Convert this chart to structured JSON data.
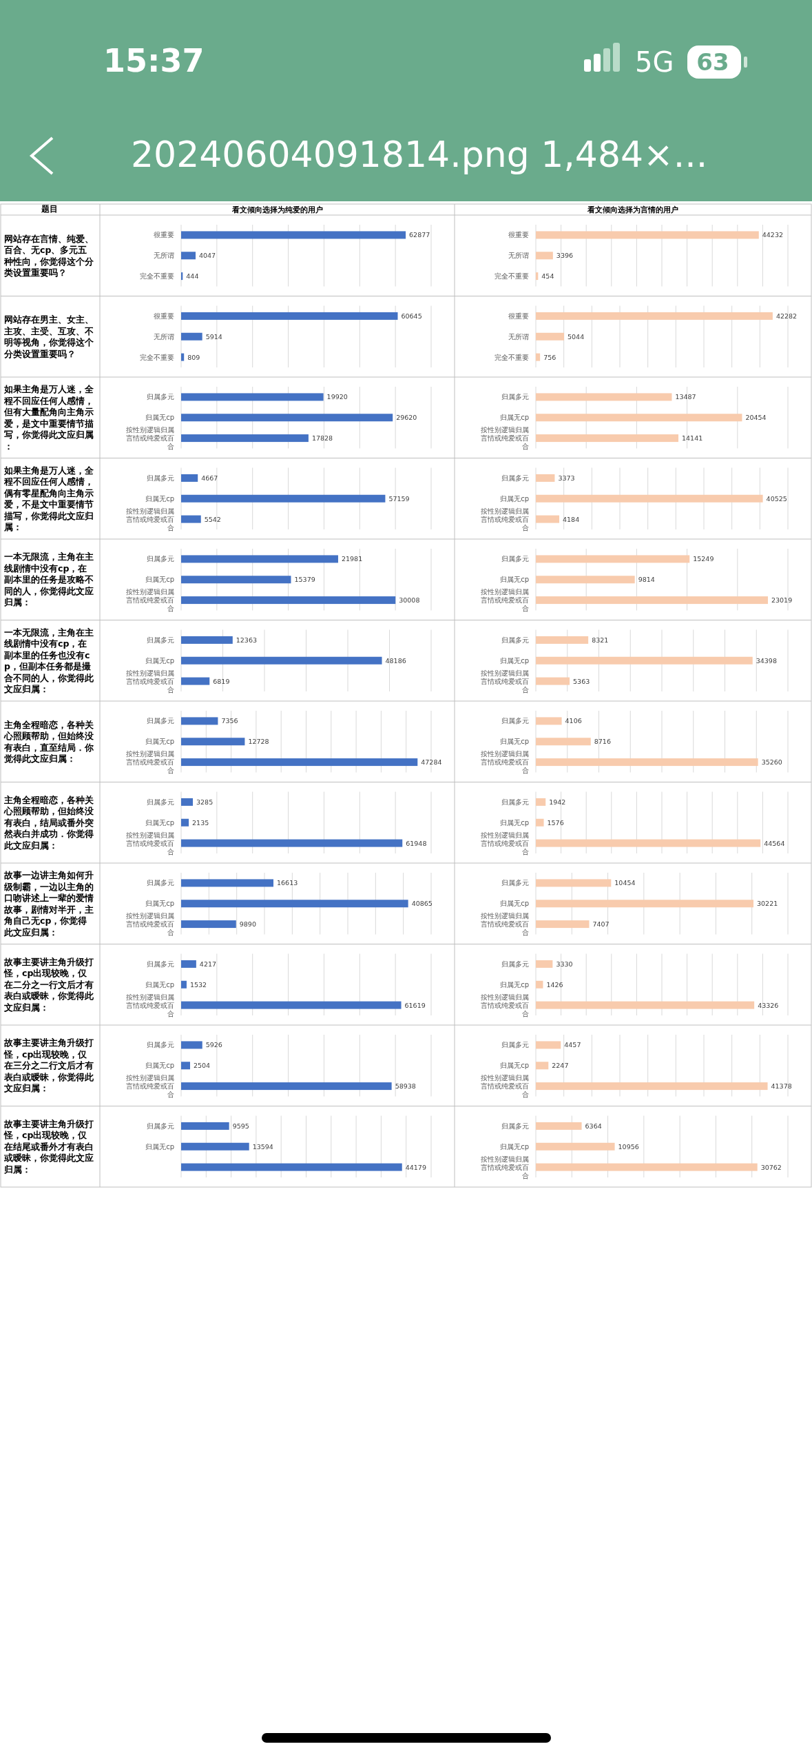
{
  "chart_data": [
    {
      "type": "bar",
      "orientation": "horizontal",
      "title": "网站存在言情、纯爱、百合、无cp、多元五种性向，你觉得这个分类设置重要吗？",
      "subtitle": "看文倾向选择为纯爱的用户",
      "annotations": [
        "15:37",
        "5G",
        "63",
        "20240604091814.png 1,484×...",
        "题目"
      ],
      "categories": [
        "很重要",
        "无所谓",
        "完全不重要"
      ],
      "values": [
        62877,
        4047,
        444
      ],
      "color": "#4472c4",
      "data_labels": true,
      "grid": "x",
      "tick_labels": "y",
      "xlim": [
        0,
        70000
      ],
      "xticks": [
        {
          "value": 10000,
          "label": null
        },
        {
          "value": 20000,
          "label": null
        },
        {
          "value": 30000,
          "label": null
        },
        {
          "value": 40000,
          "label": null
        },
        {
          "value": 50000,
          "label": null
        },
        {
          "value": 60000,
          "label": null
        },
        {
          "value": 70000,
          "label": null
        }
      ]
    },
    {
      "type": "bar",
      "orientation": "horizontal",
      "subtitle": "看文倾向选择为言情的用户",
      "categories": [
        "很重要",
        "无所谓",
        "完全不重要"
      ],
      "values": [
        44232,
        3396,
        454
      ],
      "color": "#f8cbad",
      "data_labels": true,
      "grid": "x",
      "tick_labels": "y",
      "xlim": [
        0,
        50000
      ],
      "xticks": [
        {
          "value": 5000,
          "label": null
        },
        {
          "value": 10000,
          "label": null
        },
        {
          "value": 15000,
          "label": null
        },
        {
          "value": 20000,
          "label": null
        },
        {
          "value": 25000,
          "label": null
        },
        {
          "value": 30000,
          "label": null
        },
        {
          "value": 35000,
          "label": null
        },
        {
          "value": 40000,
          "label": null
        },
        {
          "value": 45000,
          "label": null
        },
        {
          "value": 50000,
          "label": null
        }
      ]
    },
    {
      "type": "bar",
      "orientation": "horizontal",
      "title": "网站存在男主、女主、主攻、主受、互攻、不明等视角，你觉得这个分类设置重要吗？",
      "categories": [
        "很重要",
        "无所谓",
        "完全不重要"
      ],
      "values": [
        60645,
        5914,
        809
      ],
      "color": "#4472c4",
      "data_labels": true,
      "grid": "x",
      "tick_labels": "y",
      "xlim": [
        0,
        70000
      ],
      "xticks": [
        {
          "value": 10000,
          "label": null
        },
        {
          "value": 20000,
          "label": null
        },
        {
          "value": 30000,
          "label": null
        },
        {
          "value": 40000,
          "label": null
        },
        {
          "value": 50000,
          "label": null
        },
        {
          "value": 60000,
          "label": null
        },
        {
          "value": 70000,
          "label": null
        }
      ]
    },
    {
      "type": "bar",
      "orientation": "horizontal",
      "categories": [
        "很重要",
        "无所谓",
        "完全不重要"
      ],
      "values": [
        42282,
        5044,
        756
      ],
      "color": "#f8cbad",
      "data_labels": true,
      "grid": "x",
      "tick_labels": "y",
      "xlim": [
        0,
        45000
      ],
      "xticks": [
        {
          "value": 5000,
          "label": null
        },
        {
          "value": 10000,
          "label": null
        },
        {
          "value": 15000,
          "label": null
        },
        {
          "value": 20000,
          "label": null
        },
        {
          "value": 25000,
          "label": null
        },
        {
          "value": 30000,
          "label": null
        },
        {
          "value": 35000,
          "label": null
        },
        {
          "value": 40000,
          "label": null
        },
        {
          "value": 45000,
          "label": null
        }
      ]
    },
    {
      "type": "bar",
      "orientation": "horizontal",
      "title": "如果主角是万人迷，全程不回应任何人感情，但有大量配角向主角示爱，是文中重要情节描写，你觉得此文应归属：",
      "categories": [
        "归属多元",
        "归属无cp",
        "按性别逻辑归属言情或纯爱或百合"
      ],
      "values": [
        19920,
        29620,
        17828
      ],
      "color": "#4472c4",
      "data_labels": true,
      "grid": "x",
      "tick_labels": "y",
      "xlim": [
        0,
        35000
      ],
      "xticks": [
        {
          "value": 5000,
          "label": null
        },
        {
          "value": 10000,
          "label": null
        },
        {
          "value": 15000,
          "label": null
        },
        {
          "value": 20000,
          "label": null
        },
        {
          "value": 25000,
          "label": null
        },
        {
          "value": 30000,
          "label": null
        },
        {
          "value": 35000,
          "label": null
        }
      ]
    },
    {
      "type": "bar",
      "orientation": "horizontal",
      "categories": [
        "归属多元",
        "归属无cp",
        "按性别逻辑归属言情或纯爱或百合"
      ],
      "values": [
        13487,
        20454,
        14141
      ],
      "color": "#f8cbad",
      "data_labels": true,
      "grid": "x",
      "tick_labels": "y",
      "xlim": [
        0,
        25000
      ],
      "xticks": [
        {
          "value": 5000,
          "label": null
        },
        {
          "value": 10000,
          "label": null
        },
        {
          "value": 15000,
          "label": null
        },
        {
          "value": 20000,
          "label": null
        },
        {
          "value": 25000,
          "label": null
        }
      ]
    },
    {
      "type": "bar",
      "orientation": "horizontal",
      "title": "如果主角是万人迷，全程不回应任何人感情，偶有零星配角向主角示爱，不是文中重要情节描写，你觉得此文应归属：",
      "categories": [
        "归属多元",
        "归属无cp",
        "按性别逻辑归属言情或纯爱或百合"
      ],
      "values": [
        4667,
        57159,
        5542
      ],
      "color": "#4472c4",
      "data_labels": true,
      "grid": "x",
      "tick_labels": "y",
      "xlim": [
        0,
        70000
      ],
      "xticks": [
        {
          "value": 10000,
          "label": null
        },
        {
          "value": 20000,
          "label": null
        },
        {
          "value": 30000,
          "label": null
        },
        {
          "value": 40000,
          "label": null
        },
        {
          "value": 50000,
          "label": null
        },
        {
          "value": 60000,
          "label": null
        },
        {
          "value": 70000,
          "label": null
        }
      ]
    },
    {
      "type": "bar",
      "orientation": "horizontal",
      "categories": [
        "归属多元",
        "归属无cp",
        "按性别逻辑归属言情或纯爱或百合"
      ],
      "values": [
        3373,
        40525,
        4184
      ],
      "color": "#f8cbad",
      "data_labels": true,
      "grid": "x",
      "tick_labels": "y",
      "xlim": [
        0,
        45000
      ],
      "xticks": [
        {
          "value": 5000,
          "label": null
        },
        {
          "value": 10000,
          "label": null
        },
        {
          "value": 15000,
          "label": null
        },
        {
          "value": 20000,
          "label": null
        },
        {
          "value": 25000,
          "label": null
        },
        {
          "value": 30000,
          "label": null
        },
        {
          "value": 35000,
          "label": null
        },
        {
          "value": 40000,
          "label": null
        },
        {
          "value": 45000,
          "label": null
        }
      ]
    },
    {
      "type": "bar",
      "orientation": "horizontal",
      "title": "一本无限流，主角在主线剧情中没有cp，在副本里的任务是攻略不同的人，你觉得此文应归属：",
      "categories": [
        "归属多元",
        "归属无cp",
        "按性别逻辑归属言情或纯爱或百合"
      ],
      "values": [
        21981,
        15379,
        30008
      ],
      "color": "#4472c4",
      "data_labels": true,
      "grid": "x",
      "tick_labels": "y",
      "xlim": [
        0,
        35000
      ],
      "xticks": [
        {
          "value": 5000,
          "label": null
        },
        {
          "value": 10000,
          "label": null
        },
        {
          "value": 15000,
          "label": null
        },
        {
          "value": 20000,
          "label": null
        },
        {
          "value": 25000,
          "label": null
        },
        {
          "value": 30000,
          "label": null
        },
        {
          "value": 35000,
          "label": null
        }
      ]
    },
    {
      "type": "bar",
      "orientation": "horizontal",
      "categories": [
        "归属多元",
        "归属无cp",
        "按性别逻辑归属言情或纯爱或百合"
      ],
      "values": [
        15249,
        9814,
        23019
      ],
      "color": "#f8cbad",
      "data_labels": true,
      "grid": "x",
      "tick_labels": "y",
      "xlim": [
        0,
        25000
      ],
      "xticks": [
        {
          "value": 5000,
          "label": null
        },
        {
          "value": 10000,
          "label": null
        },
        {
          "value": 15000,
          "label": null
        },
        {
          "value": 20000,
          "label": null
        },
        {
          "value": 25000,
          "label": null
        }
      ]
    },
    {
      "type": "bar",
      "orientation": "horizontal",
      "title": "一本无限流，主角在主线剧情中没有cp，在副本里的任务也没有cp，但副本任务都是撮合不同的人，你觉得此文应归属：",
      "categories": [
        "归属多元",
        "归属无cp",
        "按性别逻辑归属言情或纯爱或百合"
      ],
      "values": [
        12363,
        48186,
        6819
      ],
      "color": "#4472c4",
      "data_labels": true,
      "grid": "x",
      "tick_labels": "y",
      "xlim": [
        0,
        60000
      ],
      "xticks": [
        {
          "value": 10000,
          "label": null
        },
        {
          "value": 20000,
          "label": null
        },
        {
          "value": 30000,
          "label": null
        },
        {
          "value": 40000,
          "label": null
        },
        {
          "value": 50000,
          "label": null
        },
        {
          "value": 60000,
          "label": null
        }
      ]
    },
    {
      "type": "bar",
      "orientation": "horizontal",
      "categories": [
        "归属多元",
        "归属无cp",
        "按性别逻辑归属言情或纯爱或百合"
      ],
      "values": [
        8321,
        34398,
        5363
      ],
      "color": "#f8cbad",
      "data_labels": true,
      "grid": "x",
      "tick_labels": "y",
      "xlim": [
        0,
        40000
      ],
      "xticks": [
        {
          "value": 5000,
          "label": null
        },
        {
          "value": 10000,
          "label": null
        },
        {
          "value": 15000,
          "label": null
        },
        {
          "value": 20000,
          "label": null
        },
        {
          "value": 25000,
          "label": null
        },
        {
          "value": 30000,
          "label": null
        },
        {
          "value": 35000,
          "label": null
        },
        {
          "value": 40000,
          "label": null
        }
      ]
    },
    {
      "type": "bar",
      "orientation": "horizontal",
      "title": "主角全程暗恋，各种关心照顾帮助，但始终没有表白，直至结局．你觉得此文应归属：",
      "categories": [
        "归属多元",
        "归属无cp",
        "按性别逻辑归属言情或纯爱或百合"
      ],
      "values": [
        7356,
        12728,
        47284
      ],
      "color": "#4472c4",
      "data_labels": true,
      "grid": "x",
      "tick_labels": "y",
      "xlim": [
        0,
        50000
      ],
      "xticks": [
        {
          "value": 5000,
          "label": null
        },
        {
          "value": 10000,
          "label": null
        },
        {
          "value": 15000,
          "label": null
        },
        {
          "value": 20000,
          "label": null
        },
        {
          "value": 25000,
          "label": null
        },
        {
          "value": 30000,
          "label": null
        },
        {
          "value": 35000,
          "label": null
        },
        {
          "value": 40000,
          "label": null
        },
        {
          "value": 45000,
          "label": null
        },
        {
          "value": 50000,
          "label": null
        }
      ]
    },
    {
      "type": "bar",
      "orientation": "horizontal",
      "categories": [
        "归属多元",
        "归属无cp",
        "按性别逻辑归属言情或纯爱或百合"
      ],
      "values": [
        4106,
        8716,
        35260
      ],
      "color": "#f8cbad",
      "data_labels": true,
      "grid": "x",
      "tick_labels": "y",
      "xlim": [
        0,
        40000
      ],
      "xticks": [
        {
          "value": 5000,
          "label": null
        },
        {
          "value": 10000,
          "label": null
        },
        {
          "value": 15000,
          "label": null
        },
        {
          "value": 20000,
          "label": null
        },
        {
          "value": 25000,
          "label": null
        },
        {
          "value": 30000,
          "label": null
        },
        {
          "value": 35000,
          "label": null
        },
        {
          "value": 40000,
          "label": null
        }
      ]
    },
    {
      "type": "bar",
      "orientation": "horizontal",
      "title": "主角全程暗恋，各种关心照顾帮助，但始终没有表白，结局或番外突然表白并成功．你觉得此文应归属：",
      "categories": [
        "归属多元",
        "归属无cp",
        "按性别逻辑归属言情或纯爱或百合"
      ],
      "values": [
        3285,
        2135,
        61948
      ],
      "color": "#4472c4",
      "data_labels": true,
      "grid": "x",
      "tick_labels": "y",
      "xlim": [
        0,
        70000
      ],
      "xticks": [
        {
          "value": 10000,
          "label": null
        },
        {
          "value": 20000,
          "label": null
        },
        {
          "value": 30000,
          "label": null
        },
        {
          "value": 40000,
          "label": null
        },
        {
          "value": 50000,
          "label": null
        },
        {
          "value": 60000,
          "label": null
        },
        {
          "value": 70000,
          "label": null
        }
      ]
    },
    {
      "type": "bar",
      "orientation": "horizontal",
      "categories": [
        "归属多元",
        "归属无cp",
        "按性别逻辑归属言情或纯爱或百合"
      ],
      "values": [
        1942,
        1576,
        44564
      ],
      "color": "#f8cbad",
      "data_labels": true,
      "grid": "x",
      "tick_labels": "y",
      "xlim": [
        0,
        50000
      ],
      "xticks": [
        {
          "value": 5000,
          "label": null
        },
        {
          "value": 10000,
          "label": null
        },
        {
          "value": 15000,
          "label": null
        },
        {
          "value": 20000,
          "label": null
        },
        {
          "value": 25000,
          "label": null
        },
        {
          "value": 30000,
          "label": null
        },
        {
          "value": 35000,
          "label": null
        },
        {
          "value": 40000,
          "label": null
        },
        {
          "value": 45000,
          "label": null
        },
        {
          "value": 50000,
          "label": null
        }
      ]
    },
    {
      "type": "bar",
      "orientation": "horizontal",
      "title": "故事一边讲主角如何升级制霸，一边以主角的口吻讲述上一辈的爱情故事，剧情对半开，主角自己无cp，你觉得此文应归属：",
      "categories": [
        "归属多元",
        "归属无cp",
        "按性别逻辑归属言情或纯爱或百合"
      ],
      "values": [
        16613,
        40865,
        9890
      ],
      "color": "#4472c4",
      "data_labels": true,
      "grid": "x",
      "tick_labels": "y",
      "xlim": [
        0,
        45000
      ],
      "xticks": [
        {
          "value": 5000,
          "label": null
        },
        {
          "value": 10000,
          "label": null
        },
        {
          "value": 15000,
          "label": null
        },
        {
          "value": 20000,
          "label": null
        },
        {
          "value": 25000,
          "label": null
        },
        {
          "value": 30000,
          "label": null
        },
        {
          "value": 35000,
          "label": null
        },
        {
          "value": 40000,
          "label": null
        },
        {
          "value": 45000,
          "label": null
        }
      ]
    },
    {
      "type": "bar",
      "orientation": "horizontal",
      "categories": [
        "归属多元",
        "归属无cp",
        "按性别逻辑归属言情或纯爱或百合"
      ],
      "values": [
        10454,
        30221,
        7407
      ],
      "color": "#f8cbad",
      "data_labels": true,
      "grid": "x",
      "tick_labels": "y",
      "xlim": [
        0,
        35000
      ],
      "xticks": [
        {
          "value": 5000,
          "label": null
        },
        {
          "value": 10000,
          "label": null
        },
        {
          "value": 15000,
          "label": null
        },
        {
          "value": 20000,
          "label": null
        },
        {
          "value": 25000,
          "label": null
        },
        {
          "value": 30000,
          "label": null
        },
        {
          "value": 35000,
          "label": null
        }
      ]
    },
    {
      "type": "bar",
      "orientation": "horizontal",
      "title": "故事主要讲主角升级打怪，cp出现较晚，仅在二分之一行文后才有表白或暧昧，你觉得此文应归属：",
      "categories": [
        "归属多元",
        "归属无cp",
        "按性别逻辑归属言情或纯爱或百合"
      ],
      "values": [
        4217,
        1532,
        61619
      ],
      "color": "#4472c4",
      "data_labels": true,
      "grid": "x",
      "tick_labels": "y",
      "xlim": [
        0,
        70000
      ],
      "xticks": [
        {
          "value": 10000,
          "label": null
        },
        {
          "value": 20000,
          "label": null
        },
        {
          "value": 30000,
          "label": null
        },
        {
          "value": 40000,
          "label": null
        },
        {
          "value": 50000,
          "label": null
        },
        {
          "value": 60000,
          "label": null
        },
        {
          "value": 70000,
          "label": null
        }
      ]
    },
    {
      "type": "bar",
      "orientation": "horizontal",
      "categories": [
        "归属多元",
        "归属无cp",
        "按性别逻辑归属言情或纯爱或百合"
      ],
      "values": [
        3330,
        1426,
        43326
      ],
      "color": "#f8cbad",
      "data_labels": true,
      "grid": "x",
      "tick_labels": "y",
      "xlim": [
        0,
        50000
      ],
      "xticks": [
        {
          "value": 5000,
          "label": null
        },
        {
          "value": 10000,
          "label": null
        },
        {
          "value": 15000,
          "label": null
        },
        {
          "value": 20000,
          "label": null
        },
        {
          "value": 25000,
          "label": null
        },
        {
          "value": 30000,
          "label": null
        },
        {
          "value": 35000,
          "label": null
        },
        {
          "value": 40000,
          "label": null
        },
        {
          "value": 45000,
          "label": null
        },
        {
          "value": 50000,
          "label": null
        }
      ]
    },
    {
      "type": "bar",
      "orientation": "horizontal",
      "title": "故事主要讲主角升级打怪，cp出现较晚，仅在三分之二行文后才有表白或暧昧，你觉得此文应归属：",
      "categories": [
        "归属多元",
        "归属无cp",
        "按性别逻辑归属言情或纯爱或百合"
      ],
      "values": [
        5926,
        2504,
        58938
      ],
      "color": "#4472c4",
      "data_labels": true,
      "grid": "x",
      "tick_labels": "y",
      "xlim": [
        0,
        70000
      ],
      "xticks": [
        {
          "value": 10000,
          "label": null
        },
        {
          "value": 20000,
          "label": null
        },
        {
          "value": 30000,
          "label": null
        },
        {
          "value": 40000,
          "label": null
        },
        {
          "value": 50000,
          "label": null
        },
        {
          "value": 60000,
          "label": null
        },
        {
          "value": 70000,
          "label": null
        }
      ]
    },
    {
      "type": "bar",
      "orientation": "horizontal",
      "categories": [
        "归属多元",
        "归属无cp",
        "按性别逻辑归属言情或纯爱或百合"
      ],
      "values": [
        4457,
        2247,
        41378
      ],
      "color": "#f8cbad",
      "data_labels": true,
      "grid": "x",
      "tick_labels": "y",
      "xlim": [
        0,
        45000
      ],
      "xticks": [
        {
          "value": 5000,
          "label": null
        },
        {
          "value": 10000,
          "label": null
        },
        {
          "value": 15000,
          "label": null
        },
        {
          "value": 20000,
          "label": null
        },
        {
          "value": 25000,
          "label": null
        },
        {
          "value": 30000,
          "label": null
        },
        {
          "value": 35000,
          "label": null
        },
        {
          "value": 40000,
          "label": null
        },
        {
          "value": 45000,
          "label": null
        }
      ]
    },
    {
      "type": "bar",
      "orientation": "horizontal",
      "title": "故事主要讲主角升级打怪，cp出现较晚，仅在结尾或番外才有表白或暧昧，你觉得此文应归属：",
      "categories": [
        "归属多元",
        "归属无cp",
        null
      ],
      "values": [
        9595,
        13594,
        44179
      ],
      "color": "#4472c4",
      "data_labels": true,
      "grid": "x",
      "tick_labels": "y",
      "xlim": [
        0,
        50000
      ],
      "xticks": [
        {
          "value": 5000,
          "label": null
        },
        {
          "value": 10000,
          "label": null
        },
        {
          "value": 15000,
          "label": null
        },
        {
          "value": 20000,
          "label": null
        },
        {
          "value": 25000,
          "label": null
        },
        {
          "value": 30000,
          "label": null
        },
        {
          "value": 35000,
          "label": null
        },
        {
          "value": 40000,
          "label": null
        },
        {
          "value": 45000,
          "label": null
        },
        {
          "value": 50000,
          "label": null
        }
      ]
    },
    {
      "type": "bar",
      "orientation": "horizontal",
      "categories": [
        "归属多元",
        "归属无cp",
        "按性别逻辑归属言情或纯爱或百合"
      ],
      "values": [
        6364,
        10956,
        30762
      ],
      "color": "#f8cbad",
      "data_labels": true,
      "grid": "x",
      "tick_labels": "y",
      "xlim": [
        0,
        35000
      ],
      "xticks": [
        {
          "value": 5000,
          "label": null
        },
        {
          "value": 10000,
          "label": null
        },
        {
          "value": 15000,
          "label": null
        },
        {
          "value": 20000,
          "label": null
        },
        {
          "value": 25000,
          "label": null
        },
        {
          "value": 30000,
          "label": null
        },
        {
          "value": 35000,
          "label": null
        }
      ]
    }
  ]
}
